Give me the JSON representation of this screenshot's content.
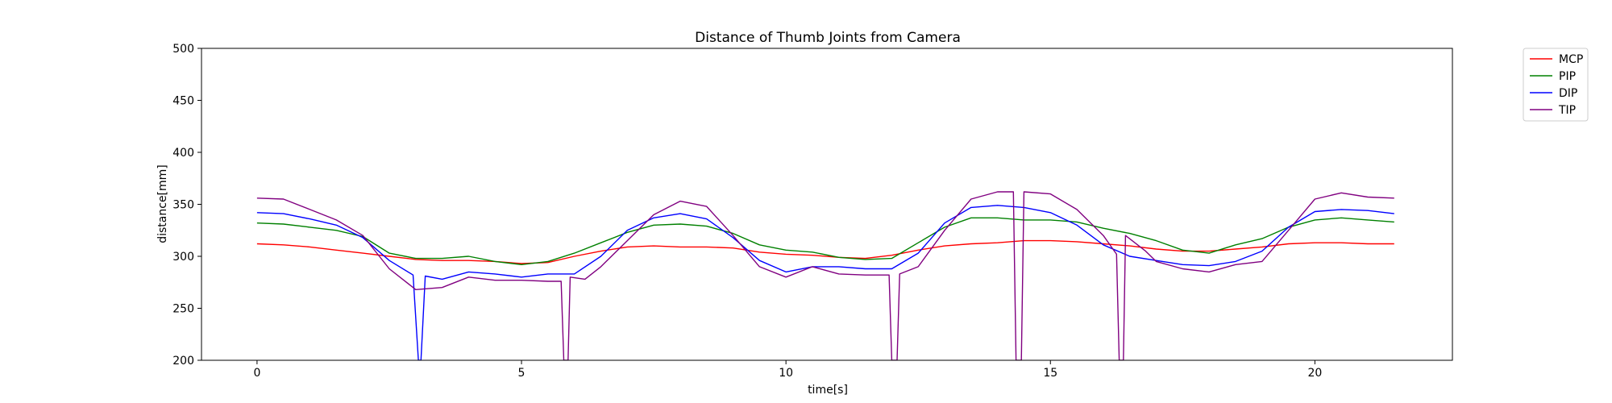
{
  "chart_data": {
    "type": "line",
    "title": "Distance of Thumb Joints from Camera",
    "xlabel": "time[s]",
    "ylabel": "distance[mm]",
    "xlim": [
      -1.05,
      22.6
    ],
    "ylim": [
      200,
      500
    ],
    "xticks": [
      0,
      5,
      10,
      15,
      20
    ],
    "yticks": [
      200,
      250,
      300,
      350,
      400,
      450,
      500
    ],
    "grid": false,
    "legend": "outside-top-right",
    "series": [
      {
        "name": "MCP",
        "color": "#ff0000",
        "points": [
          [
            0,
            312
          ],
          [
            0.5,
            311
          ],
          [
            1,
            309
          ],
          [
            1.5,
            306
          ],
          [
            2,
            303
          ],
          [
            2.5,
            300
          ],
          [
            3,
            297
          ],
          [
            3.5,
            296
          ],
          [
            4,
            296
          ],
          [
            4.5,
            295
          ],
          [
            5,
            293
          ],
          [
            5.5,
            294
          ],
          [
            6,
            300
          ],
          [
            6.5,
            305
          ],
          [
            7,
            309
          ],
          [
            7.5,
            310
          ],
          [
            8,
            309
          ],
          [
            8.5,
            309
          ],
          [
            9,
            308
          ],
          [
            9.5,
            304
          ],
          [
            10,
            302
          ],
          [
            10.5,
            301
          ],
          [
            11,
            299
          ],
          [
            11.5,
            298
          ],
          [
            12,
            301
          ],
          [
            12.5,
            306
          ],
          [
            13,
            310
          ],
          [
            13.5,
            312
          ],
          [
            14,
            313
          ],
          [
            14.5,
            315
          ],
          [
            15,
            315
          ],
          [
            15.5,
            314
          ],
          [
            16,
            312
          ],
          [
            16.5,
            310
          ],
          [
            17,
            307
          ],
          [
            17.5,
            305
          ],
          [
            18,
            305
          ],
          [
            18.5,
            307
          ],
          [
            19,
            309
          ],
          [
            19.5,
            312
          ],
          [
            20,
            313
          ],
          [
            20.5,
            313
          ],
          [
            21,
            312
          ],
          [
            21.5,
            312
          ]
        ]
      },
      {
        "name": "PIP",
        "color": "#008000",
        "points": [
          [
            0,
            332
          ],
          [
            0.5,
            331
          ],
          [
            1,
            328
          ],
          [
            1.5,
            325
          ],
          [
            2,
            319
          ],
          [
            2.5,
            303
          ],
          [
            3,
            298
          ],
          [
            3.5,
            298
          ],
          [
            4,
            300
          ],
          [
            4.5,
            295
          ],
          [
            5,
            292
          ],
          [
            5.5,
            295
          ],
          [
            6,
            303
          ],
          [
            6.5,
            313
          ],
          [
            7,
            323
          ],
          [
            7.5,
            330
          ],
          [
            8,
            331
          ],
          [
            8.5,
            329
          ],
          [
            9,
            322
          ],
          [
            9.5,
            311
          ],
          [
            10,
            306
          ],
          [
            10.5,
            304
          ],
          [
            11,
            299
          ],
          [
            11.5,
            297
          ],
          [
            12,
            298
          ],
          [
            12.5,
            313
          ],
          [
            13,
            328
          ],
          [
            13.5,
            337
          ],
          [
            14,
            337
          ],
          [
            14.5,
            335
          ],
          [
            15,
            335
          ],
          [
            15.5,
            333
          ],
          [
            16,
            327
          ],
          [
            16.5,
            322
          ],
          [
            17,
            315
          ],
          [
            17.5,
            306
          ],
          [
            18,
            303
          ],
          [
            18.5,
            311
          ],
          [
            19,
            317
          ],
          [
            19.5,
            328
          ],
          [
            20,
            335
          ],
          [
            20.5,
            337
          ],
          [
            21,
            335
          ],
          [
            21.5,
            333
          ]
        ]
      },
      {
        "name": "DIP",
        "color": "#0000ff",
        "points": [
          [
            0,
            342
          ],
          [
            0.5,
            341
          ],
          [
            1,
            336
          ],
          [
            1.5,
            330
          ],
          [
            2,
            318
          ],
          [
            2.5,
            296
          ],
          [
            2.95,
            282
          ],
          [
            3.05,
            200
          ],
          [
            3.1,
            200
          ],
          [
            3.18,
            281
          ],
          [
            3.5,
            278
          ],
          [
            4,
            285
          ],
          [
            4.5,
            283
          ],
          [
            5,
            280
          ],
          [
            5.5,
            283
          ],
          [
            6,
            283
          ],
          [
            6.5,
            300
          ],
          [
            7,
            325
          ],
          [
            7.5,
            337
          ],
          [
            8,
            341
          ],
          [
            8.5,
            336
          ],
          [
            9,
            318
          ],
          [
            9.5,
            296
          ],
          [
            10,
            285
          ],
          [
            10.5,
            290
          ],
          [
            11,
            290
          ],
          [
            11.5,
            288
          ],
          [
            12,
            288
          ],
          [
            12.5,
            303
          ],
          [
            13,
            332
          ],
          [
            13.5,
            347
          ],
          [
            14,
            349
          ],
          [
            14.5,
            347
          ],
          [
            15,
            342
          ],
          [
            15.5,
            330
          ],
          [
            16,
            311
          ],
          [
            16.5,
            300
          ],
          [
            17,
            296
          ],
          [
            17.5,
            292
          ],
          [
            18,
            291
          ],
          [
            18.5,
            295
          ],
          [
            19,
            305
          ],
          [
            19.5,
            328
          ],
          [
            20,
            343
          ],
          [
            20.5,
            345
          ],
          [
            21,
            344
          ],
          [
            21.5,
            341
          ]
        ]
      },
      {
        "name": "TIP",
        "color": "#800080",
        "points": [
          [
            0,
            356
          ],
          [
            0.5,
            355
          ],
          [
            1,
            345
          ],
          [
            1.5,
            335
          ],
          [
            2,
            320
          ],
          [
            2.5,
            288
          ],
          [
            3,
            268
          ],
          [
            3.5,
            270
          ],
          [
            4,
            280
          ],
          [
            4.5,
            277
          ],
          [
            5,
            277
          ],
          [
            5.5,
            276
          ],
          [
            5.75,
            276
          ],
          [
            5.8,
            200
          ],
          [
            5.88,
            200
          ],
          [
            5.92,
            280
          ],
          [
            6.2,
            278
          ],
          [
            6.5,
            290
          ],
          [
            7,
            315
          ],
          [
            7.5,
            340
          ],
          [
            8,
            353
          ],
          [
            8.5,
            348
          ],
          [
            9,
            320
          ],
          [
            9.5,
            290
          ],
          [
            10,
            280
          ],
          [
            10.5,
            290
          ],
          [
            11,
            283
          ],
          [
            11.5,
            282
          ],
          [
            11.95,
            282
          ],
          [
            12,
            200
          ],
          [
            12.1,
            200
          ],
          [
            12.15,
            283
          ],
          [
            12.5,
            290
          ],
          [
            13,
            325
          ],
          [
            13.5,
            355
          ],
          [
            14,
            362
          ],
          [
            14.3,
            362
          ],
          [
            14.35,
            200
          ],
          [
            14.45,
            200
          ],
          [
            14.5,
            362
          ],
          [
            15,
            360
          ],
          [
            15.5,
            345
          ],
          [
            16,
            320
          ],
          [
            16.25,
            302
          ],
          [
            16.3,
            200
          ],
          [
            16.38,
            200
          ],
          [
            16.42,
            320
          ],
          [
            16.8,
            305
          ],
          [
            17,
            295
          ],
          [
            17.5,
            288
          ],
          [
            18,
            285
          ],
          [
            18.5,
            292
          ],
          [
            19,
            295
          ],
          [
            19.5,
            325
          ],
          [
            20,
            355
          ],
          [
            20.5,
            361
          ],
          [
            21,
            357
          ],
          [
            21.5,
            356
          ]
        ]
      }
    ]
  }
}
